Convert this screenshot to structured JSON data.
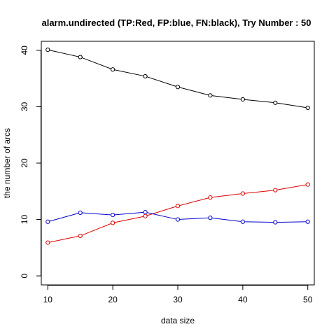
{
  "chart_data": {
    "type": "line",
    "title": "alarm.undirected  (TP:Red, FP:blue, FN:black),  Try Number :  50",
    "xlabel": "data size",
    "ylabel": "the number of arcs",
    "x": [
      10,
      15,
      20,
      25,
      30,
      35,
      40,
      45,
      50
    ],
    "xticks": [
      10,
      20,
      30,
      40,
      50
    ],
    "yticks": [
      0,
      10,
      20,
      30,
      40
    ],
    "xlim": [
      9,
      51
    ],
    "ylim": [
      -1.6,
      41.6
    ],
    "grid": false,
    "legend": "none",
    "series": [
      {
        "color": "#000000",
        "values": [
          40.1,
          38.8,
          36.6,
          35.4,
          33.5,
          32.0,
          31.3,
          30.7,
          29.8
        ]
      },
      {
        "color": "#dd0000",
        "values": [
          5.9,
          7.1,
          9.4,
          10.6,
          12.4,
          13.9,
          14.6,
          15.2,
          16.2
        ]
      },
      {
        "color": "#0000cc",
        "values": [
          9.6,
          11.2,
          10.8,
          11.3,
          10.0,
          10.3,
          9.6,
          9.5,
          9.6
        ]
      }
    ]
  }
}
